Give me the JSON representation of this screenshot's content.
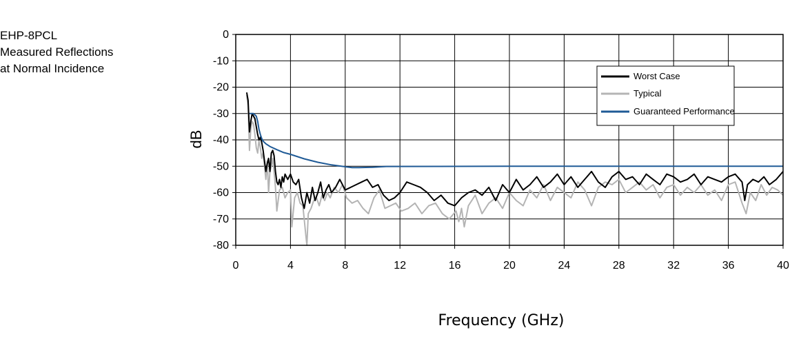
{
  "side_title": [
    "EHP-8PCL",
    "Measured Reflections",
    "at Normal Incidence"
  ],
  "chart_data": {
    "type": "line",
    "xlabel": "Frequency (GHz)",
    "ylabel": "dB",
    "xlim": [
      0,
      40
    ],
    "ylim": [
      -80,
      0
    ],
    "xticks": [
      0,
      4,
      8,
      12,
      16,
      20,
      24,
      28,
      32,
      36,
      40
    ],
    "yticks": [
      0,
      -10,
      -20,
      -30,
      -40,
      -50,
      -60,
      -70,
      -80
    ],
    "grid": true,
    "legend_position": "top-right",
    "colors": {
      "worst": "#000000",
      "typical": "#b4b4b4",
      "guaranteed": "#1f5a96"
    },
    "series": [
      {
        "name": "Worst Case",
        "x": [
          0.8,
          0.9,
          1.0,
          1.1,
          1.2,
          1.3,
          1.4,
          1.5,
          1.6,
          1.7,
          1.8,
          1.9,
          2.0,
          2.1,
          2.2,
          2.3,
          2.4,
          2.5,
          2.6,
          2.7,
          2.8,
          2.9,
          3.0,
          3.1,
          3.2,
          3.3,
          3.4,
          3.5,
          3.6,
          3.8,
          4.0,
          4.2,
          4.4,
          4.6,
          4.8,
          5.0,
          5.2,
          5.4,
          5.6,
          5.8,
          6.0,
          6.2,
          6.4,
          6.6,
          6.8,
          7.0,
          7.3,
          7.6,
          8.0,
          8.4,
          8.8,
          9.2,
          9.6,
          10.0,
          10.4,
          10.8,
          11.2,
          11.6,
          12.0,
          12.5,
          13.0,
          13.5,
          14.0,
          14.5,
          15.0,
          15.5,
          16.0,
          16.5,
          17.0,
          17.5,
          18.0,
          18.5,
          19.0,
          19.5,
          20.0,
          20.5,
          21.0,
          21.5,
          22.0,
          22.5,
          23.0,
          23.5,
          24.0,
          24.5,
          25.0,
          25.5,
          26.0,
          26.5,
          27.0,
          27.5,
          28.0,
          28.5,
          29.0,
          29.5,
          30.0,
          30.5,
          31.0,
          31.5,
          32.0,
          32.5,
          33.0,
          33.5,
          34.0,
          34.5,
          35.0,
          35.5,
          36.0,
          36.5,
          37.0,
          37.2,
          37.4,
          37.8,
          38.2,
          38.6,
          39.0,
          39.5,
          40.0
        ],
        "y": [
          -22,
          -25,
          -37,
          -33,
          -30,
          -31,
          -32,
          -35,
          -38,
          -40,
          -39,
          -41,
          -44,
          -48,
          -52,
          -49,
          -47,
          -52,
          -45,
          -44,
          -46,
          -52,
          -56,
          -57,
          -55,
          -58,
          -54,
          -56,
          -53,
          -55,
          -53,
          -56,
          -57,
          -55,
          -62,
          -66,
          -60,
          -64,
          -58,
          -63,
          -60,
          -56,
          -62,
          -59,
          -57,
          -60,
          -58,
          -55,
          -59,
          -58,
          -57,
          -56,
          -55,
          -58,
          -57,
          -61,
          -63,
          -62,
          -60,
          -56,
          -57,
          -58,
          -60,
          -63,
          -61,
          -64,
          -65,
          -62,
          -60,
          -59,
          -61,
          -58,
          -63,
          -57,
          -60,
          -55,
          -59,
          -57,
          -54,
          -58,
          -56,
          -53,
          -57,
          -54,
          -58,
          -55,
          -52,
          -56,
          -58,
          -54,
          -52,
          -55,
          -54,
          -57,
          -53,
          -55,
          -57,
          -53,
          -54,
          -56,
          -55,
          -53,
          -57,
          -54,
          -55,
          -56,
          -54,
          -53,
          -56,
          -63,
          -57,
          -55,
          -56,
          -54,
          -57,
          -55,
          -52
        ]
      },
      {
        "name": "Typical",
        "x": [
          0.8,
          0.9,
          1.0,
          1.1,
          1.2,
          1.3,
          1.4,
          1.5,
          1.6,
          1.7,
          1.8,
          1.9,
          2.0,
          2.1,
          2.2,
          2.3,
          2.4,
          2.5,
          2.6,
          2.7,
          2.8,
          2.9,
          3.0,
          3.2,
          3.4,
          3.6,
          3.8,
          4.0,
          4.1,
          4.3,
          4.5,
          4.7,
          4.9,
          5.0,
          5.1,
          5.2,
          5.3,
          5.5,
          5.7,
          5.9,
          6.1,
          6.3,
          6.5,
          6.7,
          6.9,
          7.2,
          7.5,
          7.8,
          8.1,
          8.5,
          8.9,
          9.3,
          9.7,
          10.1,
          10.5,
          10.9,
          11.3,
          11.7,
          12.1,
          12.6,
          13.1,
          13.6,
          14.1,
          14.6,
          15.1,
          15.6,
          16.1,
          16.3,
          16.5,
          16.7,
          17.0,
          17.5,
          18.0,
          18.5,
          19.0,
          19.5,
          20.0,
          20.5,
          21.0,
          21.5,
          22.0,
          22.5,
          23.0,
          23.5,
          24.0,
          24.5,
          25.0,
          25.5,
          26.0,
          26.5,
          27.0,
          27.5,
          28.0,
          28.5,
          29.0,
          29.5,
          30.0,
          30.5,
          31.0,
          31.5,
          32.0,
          32.5,
          33.0,
          33.5,
          34.0,
          34.5,
          35.0,
          35.5,
          36.0,
          36.5,
          37.0,
          37.3,
          37.6,
          38.0,
          38.4,
          38.8,
          39.2,
          39.6,
          40.0
        ],
        "y": [
          -23,
          -27,
          -44,
          -36,
          -33,
          -34,
          -38,
          -43,
          -45,
          -40,
          -43,
          -47,
          -45,
          -50,
          -55,
          -48,
          -60,
          -52,
          -50,
          -47,
          -52,
          -58,
          -67,
          -59,
          -58,
          -62,
          -60,
          -59,
          -73,
          -62,
          -60,
          -64,
          -65,
          -70,
          -75,
          -80,
          -68,
          -66,
          -63,
          -62,
          -65,
          -61,
          -63,
          -60,
          -62,
          -58,
          -60,
          -57,
          -62,
          -64,
          -63,
          -66,
          -68,
          -62,
          -59,
          -66,
          -65,
          -64,
          -67,
          -66,
          -64,
          -68,
          -65,
          -64,
          -68,
          -70,
          -67,
          -71,
          -66,
          -73,
          -65,
          -61,
          -68,
          -64,
          -62,
          -66,
          -60,
          -63,
          -65,
          -59,
          -62,
          -57,
          -63,
          -58,
          -60,
          -62,
          -56,
          -59,
          -65,
          -58,
          -56,
          -57,
          -55,
          -60,
          -58,
          -56,
          -59,
          -57,
          -62,
          -58,
          -57,
          -61,
          -58,
          -60,
          -57,
          -61,
          -59,
          -63,
          -57,
          -56,
          -64,
          -68,
          -60,
          -63,
          -57,
          -61,
          -58,
          -59,
          -61
        ]
      },
      {
        "name": "Guaranteed Performance",
        "x": [
          1.0,
          1.3,
          1.5,
          1.6,
          1.7,
          1.8,
          1.9,
          2.0,
          2.2,
          2.5,
          3.0,
          3.5,
          4.0,
          5.0,
          6.0,
          7.0,
          8.0,
          8.5,
          9.0,
          10.0,
          11.0,
          20.0,
          30.0,
          40.0
        ],
        "y": [
          -30,
          -30,
          -31,
          -33,
          -36,
          -38,
          -39.5,
          -40.5,
          -41.5,
          -42.5,
          -43.7,
          -44.8,
          -45.5,
          -47.2,
          -48.5,
          -49.5,
          -50.2,
          -50.5,
          -50.5,
          -50.4,
          -50.1,
          -50,
          -50,
          -50
        ]
      }
    ]
  }
}
